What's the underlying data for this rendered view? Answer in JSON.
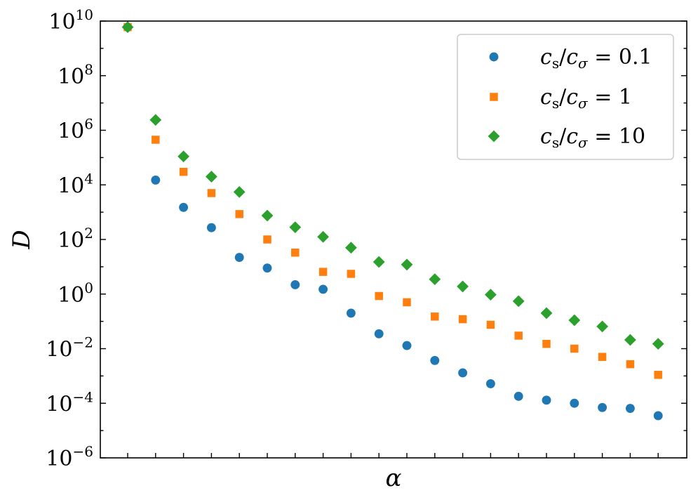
{
  "chart_data": {
    "type": "scatter",
    "title": "",
    "xlabel": "α",
    "ylabel": "D",
    "yscale": "log",
    "ylim": [
      1e-06,
      10000000000.0
    ],
    "xlim": [
      0,
      20
    ],
    "x_tick_labels_shown": false,
    "y_ticks": [
      {
        "base": "10",
        "exp": "10",
        "value": 10000000000.0
      },
      {
        "base": "10",
        "exp": "8",
        "value": 100000000.0
      },
      {
        "base": "10",
        "exp": "6",
        "value": 1000000.0
      },
      {
        "base": "10",
        "exp": "4",
        "value": 10000.0
      },
      {
        "base": "10",
        "exp": "2",
        "value": 100.0
      },
      {
        "base": "10",
        "exp": "0",
        "value": 1.0
      },
      {
        "base": "10",
        "exp": "−2",
        "value": 0.01
      },
      {
        "base": "10",
        "exp": "−4",
        "value": 0.0001
      },
      {
        "base": "10",
        "exp": "−6",
        "value": 1e-06
      }
    ],
    "grid": false,
    "legend_position": "top-right",
    "x": [
      1,
      2,
      3,
      4,
      5,
      6,
      7,
      8,
      9,
      10,
      11,
      12,
      13,
      14,
      15,
      16,
      17,
      18,
      19,
      20
    ],
    "series": [
      {
        "legend": {
          "var1": "c",
          "sub1": "s",
          "var2": "c",
          "sub2": "σ",
          "value": " = 0.1"
        },
        "marker": "circle",
        "color": "#1f77b4",
        "values": [
          6000000000.0,
          15000.0,
          1500.0,
          270,
          22,
          9,
          2.2,
          1.5,
          0.2,
          0.035,
          0.013,
          0.0037,
          0.0013,
          0.00052,
          0.00018,
          0.00013,
          0.0001,
          7e-05,
          6.5e-05,
          3.5e-05
        ]
      },
      {
        "legend": {
          "var1": "c",
          "sub1": "s",
          "var2": "c",
          "sub2": "σ",
          "value": " = 1"
        },
        "marker": "square",
        "color": "#ff7f0e",
        "values": [
          6000000000.0,
          450000.0,
          30000.0,
          5000.0,
          850,
          100,
          33,
          6.5,
          5.5,
          0.85,
          0.5,
          0.15,
          0.12,
          0.075,
          0.03,
          0.015,
          0.01,
          0.005,
          0.0027,
          0.0011
        ]
      },
      {
        "legend": {
          "var1": "c",
          "sub1": "s",
          "var2": "c",
          "sub2": "σ",
          "value": " = 10"
        },
        "marker": "diamond",
        "color": "#2ca02c",
        "values": [
          6000000000.0,
          2400000.0,
          110000.0,
          20000.0,
          5500.0,
          750,
          280,
          125,
          50,
          15,
          12,
          3.5,
          1.9,
          0.95,
          0.55,
          0.2,
          0.11,
          0.065,
          0.021,
          0.015
        ]
      }
    ]
  }
}
